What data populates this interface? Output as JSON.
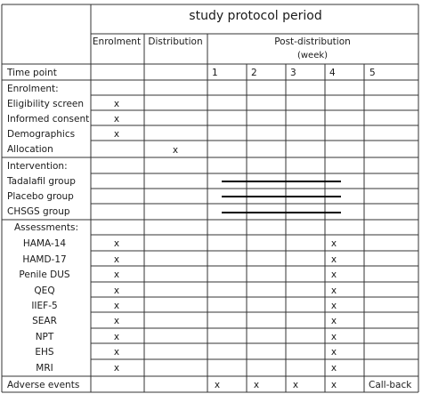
{
  "header": {
    "title": "study protocol period",
    "col_enrolment": "Enrolment",
    "col_distribution": "Distribution",
    "col_post": "Post-distribution",
    "col_post_unit": "(week)"
  },
  "timepoint": {
    "label": "Time point",
    "weeks": [
      "1",
      "2",
      "3",
      "4",
      "5"
    ]
  },
  "sections": {
    "enrolment": "Enrolment:",
    "intervention": "Intervention:",
    "assessments": "Assessments:"
  },
  "mark": "x",
  "enrolment_rows": [
    {
      "label": "Eligibility screen",
      "enrolment": "x"
    },
    {
      "label": "Informed consent",
      "enrolment": "x"
    },
    {
      "label": "Demographics",
      "enrolment": "x"
    },
    {
      "label": "Allocation",
      "distribution": "x"
    }
  ],
  "intervention_rows": [
    {
      "label": "Tadalafil group",
      "span_weeks": "1-4"
    },
    {
      "label": "Placebo group",
      "span_weeks": "1-4"
    },
    {
      "label": "CHSGS group",
      "span_weeks": "1-4"
    }
  ],
  "assessment_rows": [
    {
      "label": "HAMA-14",
      "enrolment": "x",
      "week4": "x"
    },
    {
      "label": "HAMD-17",
      "enrolment": "x",
      "week4": "x"
    },
    {
      "label": "Penile DUS",
      "enrolment": "x",
      "week4": "x"
    },
    {
      "label": "QEQ",
      "enrolment": "x",
      "week4": "x"
    },
    {
      "label": "IIEF-5",
      "enrolment": "x",
      "week4": "x"
    },
    {
      "label": "SEAR",
      "enrolment": "x",
      "week4": "x"
    },
    {
      "label": "NPT",
      "enrolment": "x",
      "week4": "x"
    },
    {
      "label": "EHS",
      "enrolment": "x",
      "week4": "x"
    },
    {
      "label": "MRI",
      "enrolment": "x",
      "week4": "x"
    }
  ],
  "adverse_row": {
    "label": "Adverse events",
    "week1": "x",
    "week2": "x",
    "week3": "x",
    "week4": "x",
    "week5": "Call-back"
  }
}
